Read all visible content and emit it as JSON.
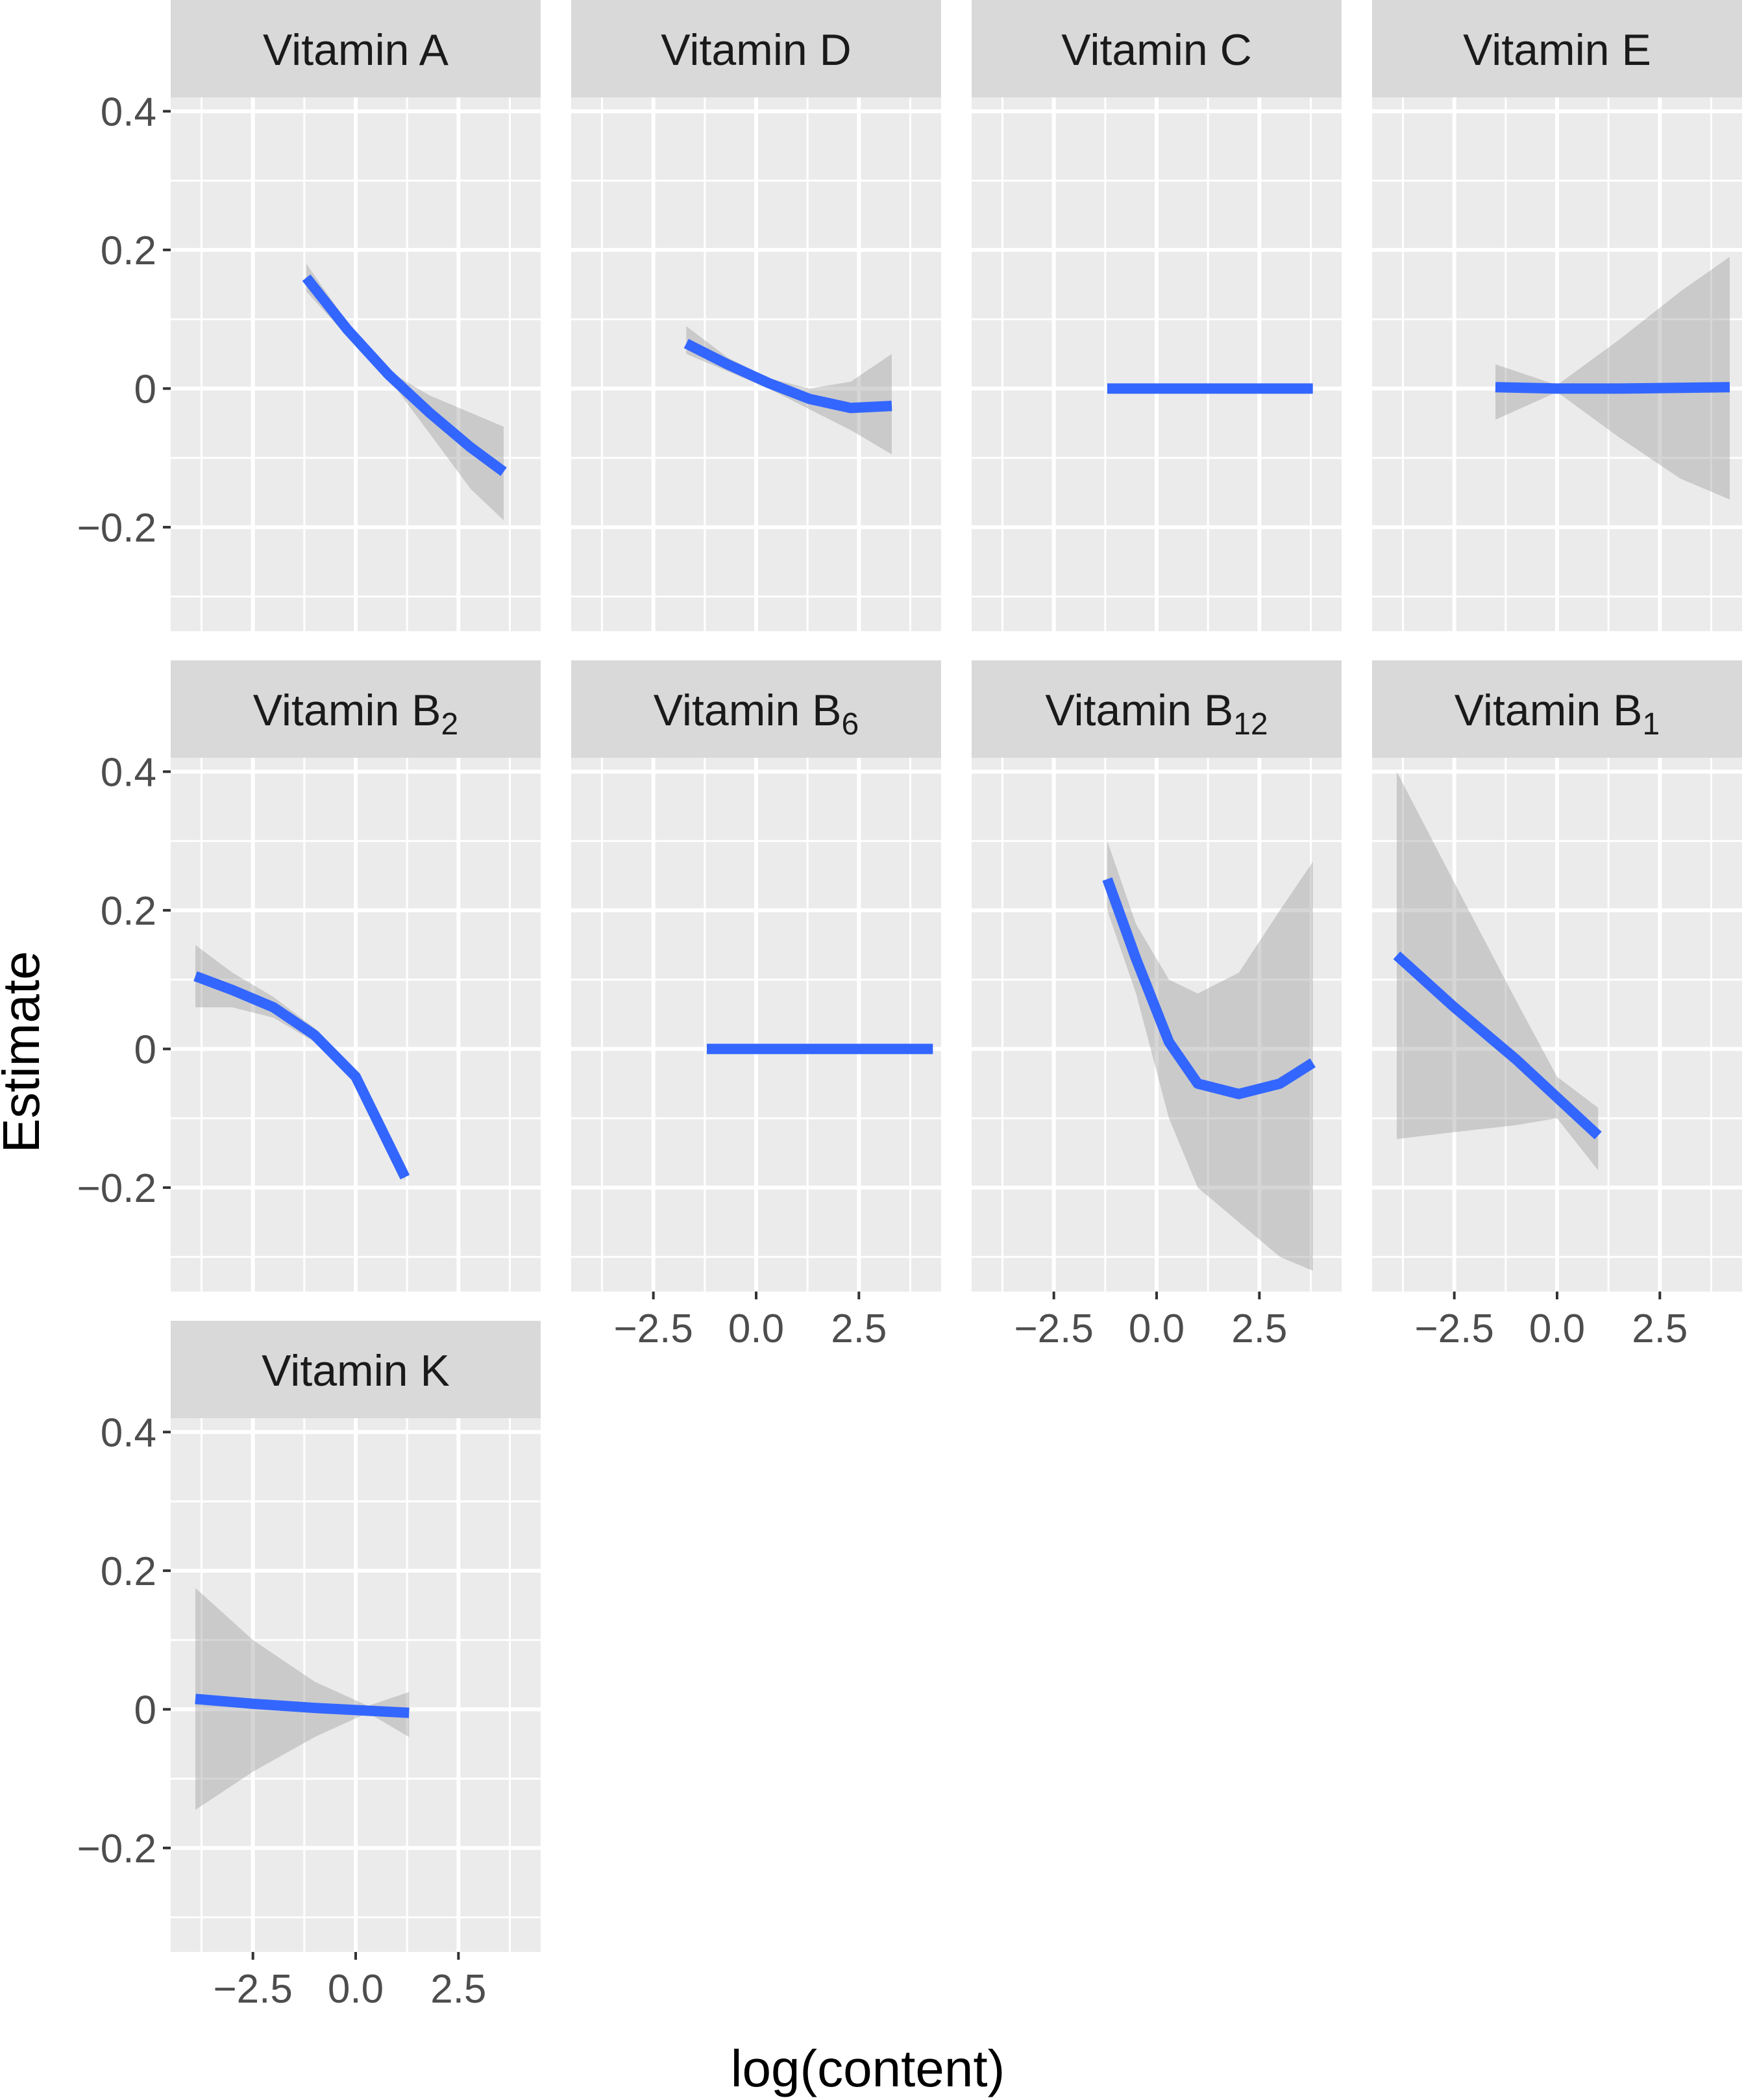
{
  "chart_data": {
    "type": "line",
    "layout": "facet_wrap",
    "xlabel": "log(content)",
    "ylabel": "Estimate",
    "xlim": [
      -4.5,
      4.5
    ],
    "ylim": [
      -0.35,
      0.42
    ],
    "xticks": [
      -2.5,
      0.0,
      2.5
    ],
    "xtick_labels": [
      "−2.5",
      "0.0",
      "2.5"
    ],
    "yticks": [
      -0.2,
      0,
      0.2,
      0.4
    ],
    "ytick_labels": [
      "−0.2",
      "0",
      "0.2",
      "0.4"
    ],
    "series_color": "#3366FF",
    "band_color": "#999999",
    "panel_background": "#EBEBEB",
    "strip_background": "#D9D9D9",
    "panels": [
      {
        "title": "Vitamin A",
        "title_main": "Vitamin A",
        "title_sub": "",
        "x": [
          -1.2,
          -0.2,
          0.8,
          1.8,
          2.8,
          3.6
        ],
        "y": [
          0.16,
          0.085,
          0.02,
          -0.035,
          -0.085,
          -0.12
        ],
        "lower": [
          0.14,
          0.075,
          0.015,
          -0.065,
          -0.145,
          -0.19
        ],
        "upper": [
          0.18,
          0.095,
          0.025,
          -0.01,
          -0.035,
          -0.055
        ]
      },
      {
        "title": "Vitamin D",
        "title_main": "Vitamin D",
        "title_sub": "",
        "x": [
          -1.7,
          -0.7,
          0.3,
          1.3,
          2.3,
          3.3
        ],
        "y": [
          0.065,
          0.035,
          0.008,
          -0.015,
          -0.028,
          -0.025
        ],
        "lower": [
          0.05,
          0.025,
          0.0,
          -0.03,
          -0.06,
          -0.095
        ],
        "upper": [
          0.09,
          0.045,
          0.015,
          0.0,
          0.01,
          0.05
        ]
      },
      {
        "title": "Vitamin C",
        "title_main": "Vitamin C",
        "title_sub": "",
        "x": [
          -1.2,
          3.8
        ],
        "y": [
          0.0,
          0.0
        ],
        "lower": [
          -0.004,
          -0.004
        ],
        "upper": [
          0.004,
          0.004
        ]
      },
      {
        "title": "Vitamin E",
        "title_main": "Vitamin E",
        "title_sub": "",
        "x": [
          -1.5,
          0.0,
          1.5,
          3.0,
          4.2
        ],
        "y": [
          0.002,
          0.0,
          0.0,
          0.001,
          0.002
        ],
        "lower": [
          -0.045,
          -0.005,
          -0.07,
          -0.13,
          -0.16
        ],
        "upper": [
          0.035,
          0.005,
          0.07,
          0.14,
          0.19
        ]
      },
      {
        "title": "Vitamin B2",
        "title_main": "Vitamin B",
        "title_sub": "2",
        "x": [
          -3.9,
          -3.0,
          -2.0,
          -1.0,
          0.0,
          1.2
        ],
        "y": [
          0.105,
          0.085,
          0.06,
          0.02,
          -0.04,
          -0.185
        ],
        "lower": [
          0.06,
          0.06,
          0.045,
          0.01,
          -0.05,
          -0.19
        ],
        "upper": [
          0.15,
          0.11,
          0.075,
          0.03,
          -0.03,
          -0.18
        ]
      },
      {
        "title": "Vitamin B6",
        "title_main": "Vitamin B",
        "title_sub": "6",
        "x": [
          -1.2,
          4.3
        ],
        "y": [
          0.0,
          0.0
        ],
        "lower": [
          -0.004,
          -0.004
        ],
        "upper": [
          0.004,
          0.004
        ]
      },
      {
        "title": "Vitamin B12",
        "title_main": "Vitamin B",
        "title_sub": "12",
        "x": [
          -1.2,
          -0.5,
          0.3,
          1.0,
          2.0,
          3.0,
          3.8
        ],
        "y": [
          0.245,
          0.13,
          0.01,
          -0.05,
          -0.065,
          -0.05,
          -0.02
        ],
        "lower": [
          0.2,
          0.08,
          -0.1,
          -0.2,
          -0.25,
          -0.3,
          -0.32
        ],
        "upper": [
          0.3,
          0.18,
          0.1,
          0.08,
          0.11,
          0.2,
          0.27
        ]
      },
      {
        "title": "Vitamin B1",
        "title_main": "Vitamin B",
        "title_sub": "1",
        "x": [
          -3.9,
          -2.5,
          -1.0,
          0.0,
          1.0
        ],
        "y": [
          0.135,
          0.06,
          -0.015,
          -0.07,
          -0.125
        ],
        "lower": [
          -0.13,
          -0.12,
          -0.11,
          -0.1,
          -0.175
        ],
        "upper": [
          0.4,
          0.24,
          0.07,
          -0.04,
          -0.085
        ]
      },
      {
        "title": "Vitamin K",
        "title_main": "Vitamin K",
        "title_sub": "",
        "x": [
          -3.9,
          -2.5,
          -1.0,
          0.3,
          1.3
        ],
        "y": [
          0.015,
          0.008,
          0.002,
          -0.002,
          -0.005
        ],
        "lower": [
          -0.145,
          -0.09,
          -0.04,
          -0.005,
          -0.04
        ],
        "upper": [
          0.175,
          0.1,
          0.04,
          0.005,
          0.025
        ]
      }
    ]
  }
}
